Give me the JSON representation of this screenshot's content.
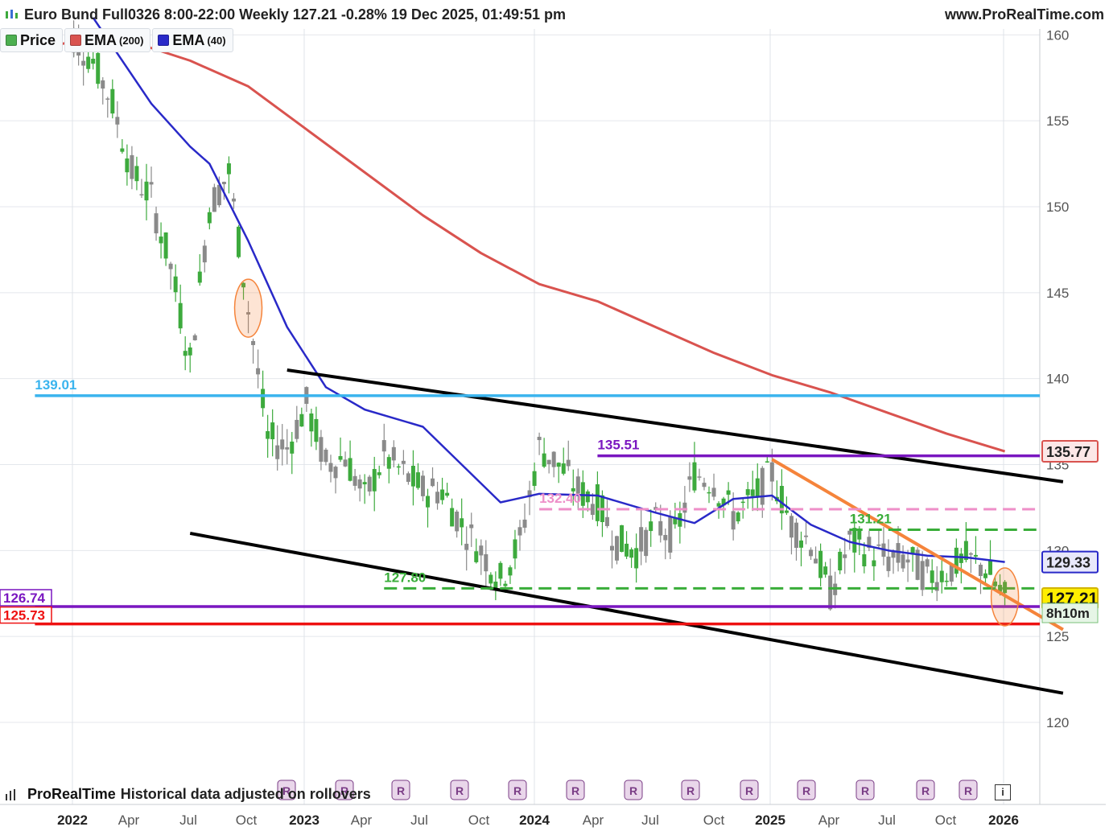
{
  "header": {
    "title": "Euro Bund Full0326 8:00-22:00 Weekly 127.21 -0.28% 19 Dec 2025, 01:49:51 pm",
    "site": "www.ProRealTime.com"
  },
  "legend": [
    {
      "label": "Price",
      "sub": "",
      "color": "#4caf50"
    },
    {
      "label": "EMA",
      "sub": "(200)",
      "color": "#d9534f"
    },
    {
      "label": "EMA",
      "sub": "(40)",
      "color": "#2929c8"
    }
  ],
  "footer": {
    "brand": "ProRealTime",
    "note": "Historical data adjusted on rollovers",
    "rollover_marker": "R",
    "info_icon": "info-icon"
  },
  "colors": {
    "up_candle": "#3daa3d",
    "down_candle": "#8a8a8a",
    "ema200": "#d9534f",
    "ema40": "#2929c8",
    "level_blue": "#3ab4ee",
    "level_purple": "#7a16c0",
    "level_red": "#ee1111",
    "level_pink": "#ee8fc8",
    "level_green": "#39ad39",
    "channel": "#000000",
    "trendline": "#f5843b"
  },
  "chart_data": {
    "type": "candlestick",
    "instrument": "Euro Bund Full0326",
    "timeframe": "Weekly",
    "last_price": 127.21,
    "change_pct": -0.28,
    "timestamp": "19 Dec 2025, 01:49:51 pm",
    "countdown": "8h10m",
    "y_ticks": [
      160,
      155,
      150,
      145,
      140,
      135,
      130,
      125,
      120
    ],
    "x_ticks": [
      "2022",
      "Apr",
      "Jul",
      "Oct",
      "2023",
      "Apr",
      "Jul",
      "Oct",
      "2024",
      "Apr",
      "Jul",
      "Oct",
      "2025",
      "Apr",
      "Jul",
      "Oct",
      "2026"
    ],
    "x_ticks_bold": [
      "2022",
      "2023",
      "2024",
      "2025",
      "2026"
    ],
    "x_range": [
      "2021-10",
      "2026-03"
    ],
    "y_range": [
      117.5,
      162
    ],
    "price_series_approx": [
      {
        "t": "2021-12",
        "close": 159.9
      },
      {
        "t": "2022-01",
        "close": 158.5
      },
      {
        "t": "2022-02",
        "close": 156.0
      },
      {
        "t": "2022-03",
        "close": 152.0
      },
      {
        "t": "2022-04",
        "close": 150.5
      },
      {
        "t": "2022-05",
        "close": 146.5
      },
      {
        "t": "2022-06",
        "close": 141.0
      },
      {
        "t": "2022-07",
        "close": 150.0
      },
      {
        "t": "2022-08",
        "close": 152.0
      },
      {
        "t": "2022-09",
        "close": 144.0
      },
      {
        "t": "2022-10",
        "close": 136.5
      },
      {
        "t": "2022-11",
        "close": 136.0
      },
      {
        "t": "2022-12",
        "close": 138.5
      },
      {
        "t": "2023-01",
        "close": 135.0
      },
      {
        "t": "2023-02",
        "close": 135.5
      },
      {
        "t": "2023-03",
        "close": 133.0
      },
      {
        "t": "2023-04",
        "close": 135.5
      },
      {
        "t": "2023-05",
        "close": 134.5
      },
      {
        "t": "2023-06",
        "close": 133.5
      },
      {
        "t": "2023-07",
        "close": 133.5
      },
      {
        "t": "2023-08",
        "close": 131.5
      },
      {
        "t": "2023-09",
        "close": 130.0
      },
      {
        "t": "2023-10",
        "close": 128.3
      },
      {
        "t": "2023-11",
        "close": 130.5
      },
      {
        "t": "2023-12",
        "close": 136.0
      },
      {
        "t": "2024-01",
        "close": 135.0
      },
      {
        "t": "2024-02",
        "close": 133.5
      },
      {
        "t": "2024-03",
        "close": 132.8
      },
      {
        "t": "2024-04",
        "close": 130.5
      },
      {
        "t": "2024-05",
        "close": 130.0
      },
      {
        "t": "2024-06",
        "close": 131.5
      },
      {
        "t": "2024-07",
        "close": 130.8
      },
      {
        "t": "2024-08",
        "close": 134.5
      },
      {
        "t": "2024-09",
        "close": 134.0
      },
      {
        "t": "2024-10",
        "close": 132.0
      },
      {
        "t": "2024-11",
        "close": 133.0
      },
      {
        "t": "2024-12",
        "close": 134.5
      },
      {
        "t": "2025-01",
        "close": 131.5
      },
      {
        "t": "2025-02",
        "close": 130.5
      },
      {
        "t": "2025-03",
        "close": 127.5
      },
      {
        "t": "2025-04",
        "close": 130.5
      },
      {
        "t": "2025-05",
        "close": 130.0
      },
      {
        "t": "2025-06",
        "close": 129.5
      },
      {
        "t": "2025-07",
        "close": 129.5
      },
      {
        "t": "2025-08",
        "close": 128.5
      },
      {
        "t": "2025-09",
        "close": 128.8
      },
      {
        "t": "2025-10",
        "close": 129.5
      },
      {
        "t": "2025-11",
        "close": 129.0
      },
      {
        "t": "2025-12",
        "close": 127.21
      }
    ],
    "ema40_approx": [
      {
        "t": "2022-01",
        "v": 161.0
      },
      {
        "t": "2022-04",
        "v": 156.0
      },
      {
        "t": "2022-06",
        "v": 153.5
      },
      {
        "t": "2022-07",
        "v": 152.5
      },
      {
        "t": "2022-09",
        "v": 148.0
      },
      {
        "t": "2022-11",
        "v": 143.0
      },
      {
        "t": "2023-01",
        "v": 139.5
      },
      {
        "t": "2023-03",
        "v": 138.2
      },
      {
        "t": "2023-06",
        "v": 137.2
      },
      {
        "t": "2023-08",
        "v": 135.0
      },
      {
        "t": "2023-10",
        "v": 132.8
      },
      {
        "t": "2023-12",
        "v": 133.3
      },
      {
        "t": "2024-03",
        "v": 133.2
      },
      {
        "t": "2024-06",
        "v": 132.2
      },
      {
        "t": "2024-08",
        "v": 131.6
      },
      {
        "t": "2024-10",
        "v": 133.0
      },
      {
        "t": "2024-12",
        "v": 133.2
      },
      {
        "t": "2025-02",
        "v": 131.5
      },
      {
        "t": "2025-04",
        "v": 130.5
      },
      {
        "t": "2025-06",
        "v": 130.0
      },
      {
        "t": "2025-08",
        "v": 129.7
      },
      {
        "t": "2025-10",
        "v": 129.6
      },
      {
        "t": "2025-12",
        "v": 129.33
      }
    ],
    "ema200_approx": [
      {
        "t": "2021-10",
        "v": 159.2
      },
      {
        "t": "2021-12",
        "v": 159.6
      },
      {
        "t": "2022-03",
        "v": 159.6
      },
      {
        "t": "2022-06",
        "v": 158.5
      },
      {
        "t": "2022-09",
        "v": 157.0
      },
      {
        "t": "2022-12",
        "v": 154.5
      },
      {
        "t": "2023-03",
        "v": 152.0
      },
      {
        "t": "2023-06",
        "v": 149.5
      },
      {
        "t": "2023-09",
        "v": 147.3
      },
      {
        "t": "2023-12",
        "v": 145.5
      },
      {
        "t": "2024-03",
        "v": 144.5
      },
      {
        "t": "2024-06",
        "v": 143.0
      },
      {
        "t": "2024-09",
        "v": 141.5
      },
      {
        "t": "2024-12",
        "v": 140.2
      },
      {
        "t": "2025-03",
        "v": 139.2
      },
      {
        "t": "2025-06",
        "v": 138.0
      },
      {
        "t": "2025-09",
        "v": 136.8
      },
      {
        "t": "2025-12",
        "v": 135.77
      }
    ],
    "levels": [
      {
        "value": 139.01,
        "label": "139.01",
        "color": "#3ab4ee",
        "style": "solid",
        "from": "2021-10"
      },
      {
        "value": 135.51,
        "label": "135.51",
        "color": "#7a16c0",
        "style": "solid",
        "from": "2024-03"
      },
      {
        "value": 132.4,
        "label": "132.40",
        "color": "#ee8fc8",
        "style": "dashed",
        "from": "2023-12"
      },
      {
        "value": 131.21,
        "label": "131.21",
        "color": "#39ad39",
        "style": "dashed",
        "from": "2025-04"
      },
      {
        "value": 127.8,
        "label": "127.80",
        "color": "#39ad39",
        "style": "dashed",
        "from": "2023-04"
      },
      {
        "value": 126.74,
        "label": "126.74",
        "color": "#7a16c0",
        "style": "solid",
        "from": "2021-10"
      },
      {
        "value": 125.73,
        "label": "125.73",
        "color": "#ee1111",
        "style": "solid",
        "from": "2021-10"
      }
    ],
    "axis_badges": [
      {
        "value": 135.77,
        "label": "135.77",
        "kind": "ema200"
      },
      {
        "value": 129.33,
        "label": "129.33",
        "kind": "ema40"
      },
      {
        "value": 127.21,
        "label": "127.21",
        "kind": "price"
      }
    ],
    "channel_upper": [
      {
        "t": "2022-11",
        "v": 140.5
      },
      {
        "t": "2026-03",
        "v": 134.0
      }
    ],
    "channel_lower": [
      {
        "t": "2022-06",
        "v": 131.0
      },
      {
        "t": "2026-03",
        "v": 121.7
      }
    ],
    "trendline_orange": [
      {
        "t": "2024-12",
        "v": 135.3
      },
      {
        "t": "2026-03",
        "v": 125.4
      }
    ],
    "highlight_ellipses": [
      {
        "t": "2022-09",
        "v": 144.1
      },
      {
        "t": "2025-12",
        "v": 127.3
      }
    ]
  }
}
